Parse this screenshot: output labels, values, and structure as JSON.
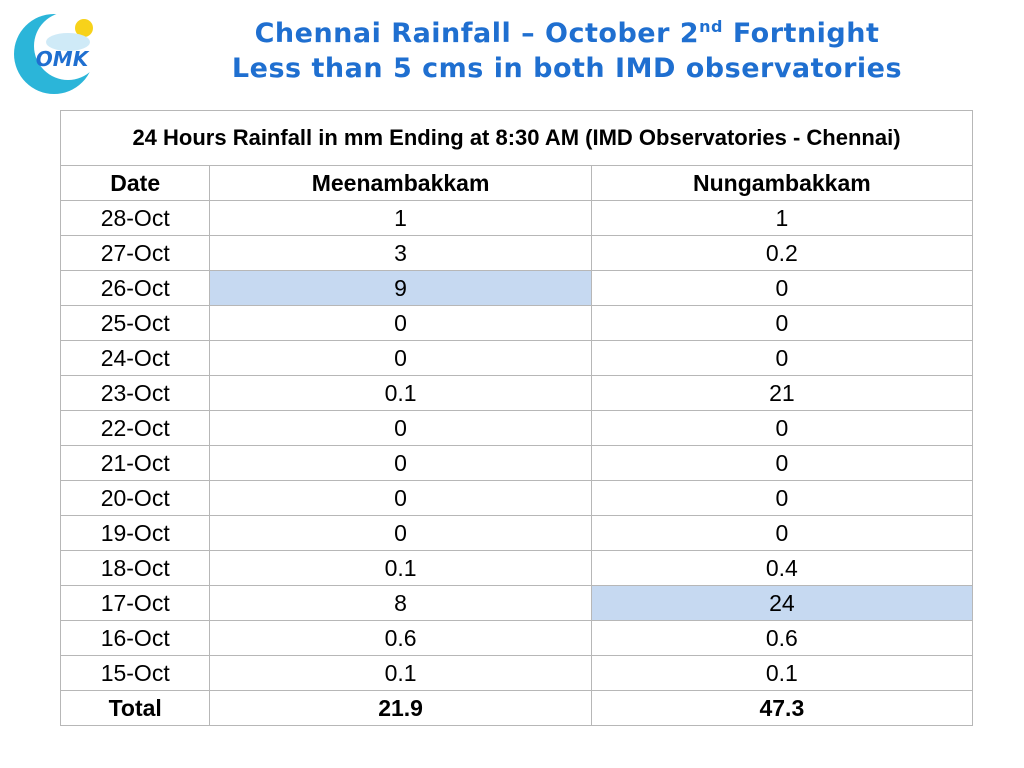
{
  "header": {
    "logo": "OMK",
    "title_line1": {
      "before": "Chennai Rainfall – October 2",
      "superscript": "nd",
      "after": " Fortnight"
    },
    "title_line2": "Less than 5 cms in both IMD observatories"
  },
  "table": {
    "caption": "24 Hours Rainfall in mm Ending at 8:30 AM (IMD Observatories - Chennai)",
    "columns": [
      "Date",
      "Meenambakkam",
      "Nungambakkam"
    ],
    "rows": [
      [
        "28-Oct",
        1,
        1
      ],
      [
        "27-Oct",
        3,
        0.2
      ],
      [
        "26-Oct",
        9,
        0
      ],
      [
        "25-Oct",
        0,
        0
      ],
      [
        "24-Oct",
        0,
        0
      ],
      [
        "23-Oct",
        0.1,
        21
      ],
      [
        "22-Oct",
        0,
        0
      ],
      [
        "21-Oct",
        0,
        0
      ],
      [
        "20-Oct",
        0,
        0
      ],
      [
        "19-Oct",
        0,
        0
      ],
      [
        "18-Oct",
        0.1,
        0.4
      ],
      [
        "17-Oct",
        8,
        24
      ],
      [
        "16-Oct",
        0.6,
        0.6
      ],
      [
        "15-Oct",
        0.1,
        0.1
      ]
    ],
    "total": [
      "Total",
      21.9,
      47.3
    ]
  }
}
